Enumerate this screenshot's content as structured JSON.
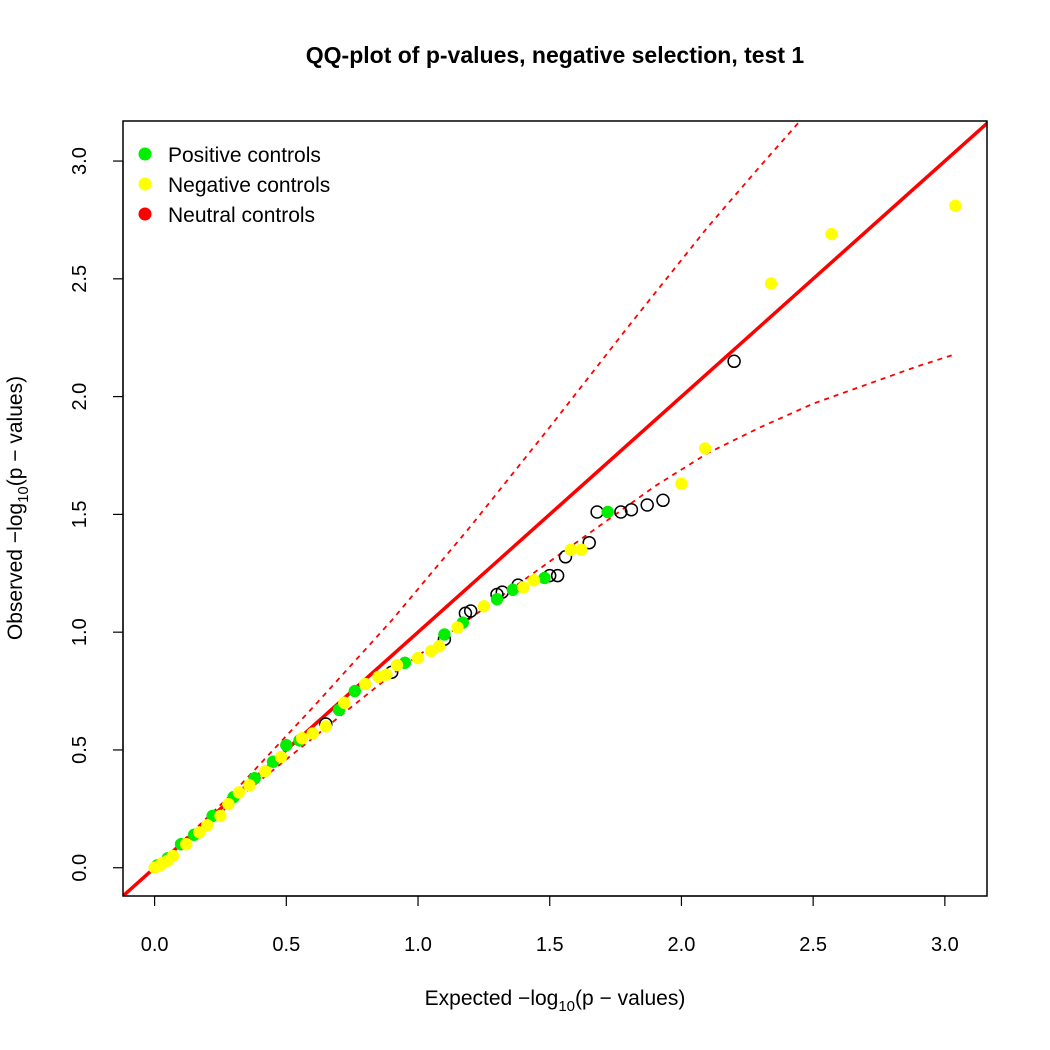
{
  "chart_data": {
    "type": "scatter",
    "title": "QQ-plot of p-values, negative selection, test 1",
    "xlabel": {
      "pre": "Expected −log",
      "sub": "10",
      "post": "(p − values)"
    },
    "ylabel": {
      "pre": "Observed −log",
      "sub": "10",
      "post": "(p − values)"
    },
    "xlim": [
      -0.12,
      3.16
    ],
    "ylim": [
      -0.12,
      3.17
    ],
    "x_ticks": [
      "0.0",
      "0.5",
      "1.0",
      "1.5",
      "2.0",
      "2.5",
      "3.0"
    ],
    "y_ticks": [
      "0.0",
      "0.5",
      "1.0",
      "1.5",
      "2.0",
      "2.5",
      "3.0"
    ],
    "grid": false,
    "legend_position": "top-left",
    "colors": {
      "positive": "#00ee00",
      "negative": "#ffff00",
      "neutral": "#ff0000",
      "other": "none",
      "reference_line": "#ff0000",
      "confidence_band": "#ff0000"
    },
    "legend": [
      {
        "label": "Positive controls",
        "key": "positive"
      },
      {
        "label": "Negative controls",
        "key": "negative"
      },
      {
        "label": "Neutral controls",
        "key": "neutral"
      }
    ],
    "reference_line": {
      "slope": 1,
      "intercept": 0
    },
    "confidence_band": {
      "upper": [
        [
          0.0,
          0.0
        ],
        [
          0.3,
          0.32
        ],
        [
          0.6,
          0.68
        ],
        [
          0.9,
          1.05
        ],
        [
          1.2,
          1.45
        ],
        [
          1.5,
          1.87
        ],
        [
          1.8,
          2.3
        ],
        [
          2.1,
          2.72
        ],
        [
          2.3,
          2.98
        ],
        [
          2.45,
          3.17
        ]
      ],
      "lower": [
        [
          0.0,
          0.0
        ],
        [
          0.3,
          0.28
        ],
        [
          0.6,
          0.55
        ],
        [
          0.9,
          0.82
        ],
        [
          1.2,
          1.06
        ],
        [
          1.5,
          1.3
        ],
        [
          1.7,
          1.46
        ],
        [
          1.9,
          1.62
        ],
        [
          2.1,
          1.76
        ],
        [
          2.3,
          1.87
        ],
        [
          2.5,
          1.97
        ],
        [
          2.7,
          2.05
        ],
        [
          2.9,
          2.13
        ],
        [
          3.04,
          2.18
        ]
      ]
    },
    "series": [
      {
        "group": "other",
        "points": [
          [
            1.32,
            1.17
          ],
          [
            1.3,
            1.16
          ],
          [
            1.18,
            1.08
          ],
          [
            1.2,
            1.09
          ],
          [
            1.5,
            1.24
          ],
          [
            1.53,
            1.24
          ],
          [
            1.56,
            1.32
          ],
          [
            1.65,
            1.38
          ],
          [
            1.68,
            1.51
          ],
          [
            1.77,
            1.51
          ],
          [
            1.81,
            1.52
          ],
          [
            1.87,
            1.54
          ],
          [
            1.93,
            1.56
          ],
          [
            2.2,
            2.15
          ],
          [
            1.38,
            1.2
          ],
          [
            1.1,
            0.97
          ],
          [
            0.9,
            0.83
          ],
          [
            0.65,
            0.61
          ]
        ]
      },
      {
        "group": "positive",
        "points": [
          [
            0.01,
            0.01
          ],
          [
            0.05,
            0.04
          ],
          [
            0.1,
            0.1
          ],
          [
            0.15,
            0.14
          ],
          [
            0.22,
            0.22
          ],
          [
            0.3,
            0.3
          ],
          [
            0.38,
            0.38
          ],
          [
            0.45,
            0.45
          ],
          [
            0.5,
            0.52
          ],
          [
            0.55,
            0.54
          ],
          [
            0.7,
            0.67
          ],
          [
            0.76,
            0.75
          ],
          [
            0.95,
            0.87
          ],
          [
            1.1,
            0.99
          ],
          [
            1.17,
            1.04
          ],
          [
            1.3,
            1.14
          ],
          [
            1.36,
            1.18
          ],
          [
            1.48,
            1.23
          ],
          [
            1.72,
            1.51
          ]
        ]
      },
      {
        "group": "negative",
        "points": [
          [
            0.0,
            0.0
          ],
          [
            0.02,
            0.01
          ],
          [
            0.03,
            0.02
          ],
          [
            0.05,
            0.03
          ],
          [
            0.07,
            0.05
          ],
          [
            0.12,
            0.1
          ],
          [
            0.17,
            0.15
          ],
          [
            0.2,
            0.18
          ],
          [
            0.25,
            0.22
          ],
          [
            0.28,
            0.27
          ],
          [
            0.32,
            0.32
          ],
          [
            0.36,
            0.35
          ],
          [
            0.42,
            0.41
          ],
          [
            0.48,
            0.47
          ],
          [
            0.56,
            0.55
          ],
          [
            0.6,
            0.57
          ],
          [
            0.65,
            0.6
          ],
          [
            0.72,
            0.7
          ],
          [
            0.8,
            0.78
          ],
          [
            0.85,
            0.81
          ],
          [
            0.88,
            0.82
          ],
          [
            0.92,
            0.86
          ],
          [
            1.0,
            0.89
          ],
          [
            1.05,
            0.92
          ],
          [
            1.08,
            0.94
          ],
          [
            1.15,
            1.02
          ],
          [
            1.25,
            1.11
          ],
          [
            1.4,
            1.19
          ],
          [
            1.44,
            1.22
          ],
          [
            1.58,
            1.35
          ],
          [
            1.62,
            1.35
          ],
          [
            2.0,
            1.63
          ],
          [
            2.09,
            1.78
          ],
          [
            2.34,
            2.48
          ],
          [
            2.57,
            2.69
          ],
          [
            3.04,
            2.81
          ]
        ]
      }
    ]
  }
}
